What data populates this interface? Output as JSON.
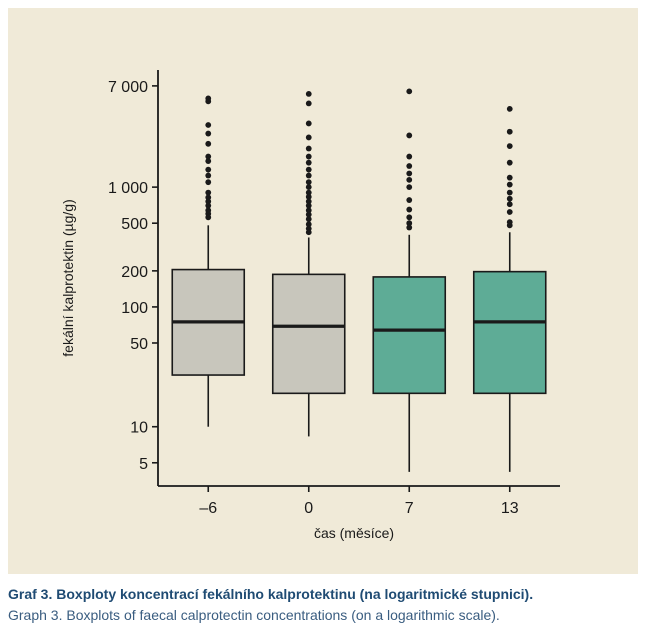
{
  "chart_data": {
    "type": "boxplot",
    "scale": "log",
    "xlabel": "čas (měsíce)",
    "ylabel": "fekální kalprotektin (µg/g)",
    "ylim": [
      3.2,
      9500
    ],
    "yticks": [
      5,
      10,
      50,
      100,
      200,
      500,
      1000,
      7000
    ],
    "ytick_labels": [
      "5",
      "10",
      "50",
      "100",
      "200",
      "500",
      "1 000",
      "7 000"
    ],
    "categories": [
      "–6",
      "0",
      "7",
      "13"
    ],
    "boxes": [
      {
        "category": "–6",
        "whisker_low": 10,
        "q1": 27,
        "median": 75,
        "q3": 205,
        "whisker_high": 480,
        "outliers": [
          5500,
          5200,
          3300,
          2800,
          2300,
          1800,
          1650,
          1400,
          1250,
          1100,
          900,
          820,
          760,
          700,
          640,
          600,
          560
        ]
      },
      {
        "category": "0",
        "whisker_low": 8.3,
        "q1": 19,
        "median": 69,
        "q3": 187,
        "whisker_high": 380,
        "outliers": [
          6000,
          5000,
          3400,
          2600,
          2100,
          1800,
          1600,
          1400,
          1250,
          1100,
          1000,
          900,
          830,
          760,
          700,
          640,
          590,
          540,
          490,
          450,
          420
        ]
      },
      {
        "category": "7",
        "whisker_low": 4.2,
        "q1": 19,
        "median": 64,
        "q3": 178,
        "whisker_high": 400,
        "outliers": [
          6300,
          2700,
          1800,
          1500,
          1300,
          1150,
          1000,
          780,
          650,
          560,
          500,
          460
        ]
      },
      {
        "category": "13",
        "whisker_low": 4.2,
        "q1": 19,
        "median": 75,
        "q3": 197,
        "whisker_high": 420,
        "outliers": [
          4500,
          2900,
          2200,
          1600,
          1200,
          1050,
          900,
          800,
          720,
          620,
          510,
          480
        ]
      }
    ],
    "colors": [
      "#c8c6bc",
      "#c8c6bc",
      "#5eac96",
      "#5eac96"
    ]
  },
  "caption": {
    "title": "Graf 3. Boxploty koncentrací fekálního kalprotektinu (na logaritmické stupnici).",
    "subtitle": "Graph 3. Boxplots of faecal calprotectin concentrations (on a logarithmic scale)."
  }
}
